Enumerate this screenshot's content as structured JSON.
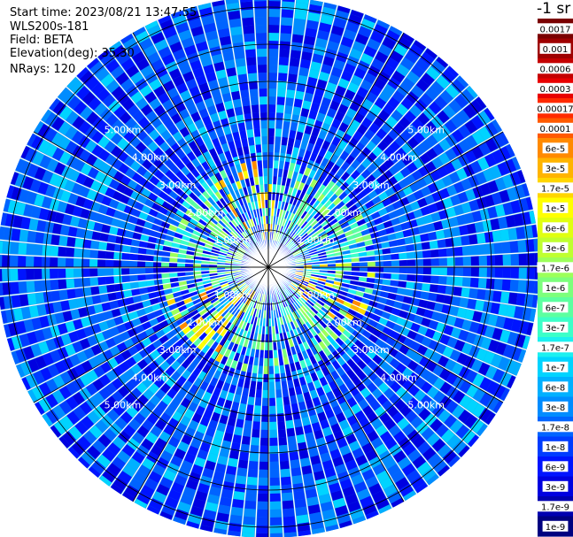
{
  "header": {
    "start_time": "Start time: 2023/08/21 13:47:55",
    "instrument": "WLS200s-181",
    "field": "Field: BETA",
    "elevation": "Elevation(deg): 35.30",
    "nrays": "NRays: 120"
  },
  "colorbar": {
    "unit_label": "-1 sr",
    "labels": [
      "0.0017",
      "0.001",
      "0.0006",
      "0.0003",
      "0.00017",
      "0.0001",
      "6e-5",
      "3e-5",
      "1.7e-5",
      "1e-5",
      "6e-6",
      "3e-6",
      "1.7e-6",
      "1e-6",
      "6e-7",
      "3e-7",
      "1.7e-7",
      "1e-7",
      "6e-8",
      "3e-8",
      "1.7e-8",
      "1e-8",
      "6e-9",
      "3e-9",
      "1.7e-9",
      "1e-9"
    ],
    "colors": [
      "#7a0000",
      "#9e0000",
      "#c40000",
      "#e80000",
      "#ff2a00",
      "#ff5a00",
      "#ff8a00",
      "#ffb400",
      "#ffd600",
      "#ffff00",
      "#e0ff10",
      "#bfff30",
      "#9cff5a",
      "#7cff7c",
      "#5cffa0",
      "#3cffc8",
      "#1cf0f0",
      "#00d4ff",
      "#00b0ff",
      "#008cff",
      "#0064ff",
      "#003cff",
      "#0014ff",
      "#0000e0",
      "#0000b0",
      "#000080"
    ]
  },
  "chart_data": {
    "type": "heatmap",
    "projection": "polar (PPI)",
    "n_rays": 120,
    "range_rings_km": [
      1.0,
      2.0,
      3.0,
      4.0,
      5.0
    ],
    "ring_labels": [
      "1.00km",
      "2.00km",
      "3.00km",
      "4.00km",
      "5.00km"
    ],
    "field": "BETA",
    "elevation_deg": 35.3,
    "color_scale": "log",
    "value_range": [
      1e-09,
      0.0017
    ]
  }
}
